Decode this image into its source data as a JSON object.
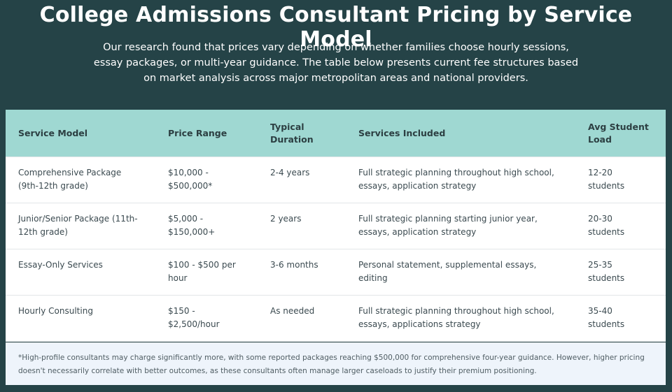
{
  "header": {
    "title": "College Admissions Consultant Pricing by Service Model",
    "subtitle": "Our research found that prices vary depending on whether families choose hourly sessions, essay packages, or multi-year guidance. The table below presents current fee structures based on market analysis across major metropolitan areas and national providers."
  },
  "table": {
    "columns": [
      "Service Model",
      "Price Range",
      "Typical Duration",
      "Services Included",
      "Avg Student Load"
    ],
    "rows": [
      [
        "Comprehensive Package (9th-12th grade)",
        "$10,000 - $500,000*",
        "2-4 years",
        "Full strategic planning throughout high school, essays, application strategy",
        "12-20 students"
      ],
      [
        "Junior/Senior Package (11th-12th grade)",
        "$5,000 - $150,000+",
        "2 years",
        "Full strategic planning starting junior year, essays, application strategy",
        "20-30 students"
      ],
      [
        "Essay-Only Services",
        "$100 - $500 per hour",
        "3-6 months",
        "Personal statement, supplemental essays, editing",
        "25-35 students"
      ],
      [
        "Hourly Consulting",
        "$150 - $2,500/hour",
        "As needed",
        "Full strategic planning throughout high school, essays, applications strategy",
        "35-40 students"
      ]
    ],
    "footnote": "*High-profile consultants may charge significantly more, with some reported packages reaching $500,000 for comprehensive four-year guidance. However, higher pricing doesn't necessarily correlate with better outcomes, as these consultants often manage larger caseloads to justify their premium positioning."
  }
}
